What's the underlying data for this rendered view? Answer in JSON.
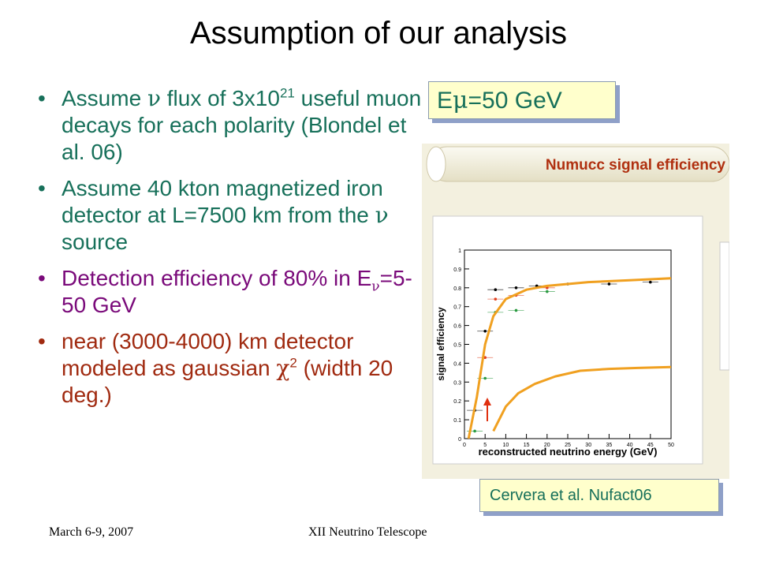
{
  "slide": {
    "title": "Assumption of our analysis",
    "bullets": [
      {
        "pre": "Assume ",
        "sym": "ν",
        "mid": " flux of 3x10",
        "sup": "21",
        "post": " useful muon decays for each polarity (Blondel et al. 06)"
      },
      {
        "pre": "Assume 40 kton magnetized iron detector at L=7500 km from the ",
        "sym": "ν",
        "post": " source"
      },
      {
        "pre": "Detection efficiency of 80% in E",
        "sub": "ν",
        "post": "=5-50 GeV"
      },
      {
        "pre": "near (3000-4000) km detector modeled as gaussian ",
        "sym": "χ",
        "sup": "2",
        "post": " (width 20 deg.)"
      }
    ],
    "energy_box": {
      "pre": "E",
      "sym": "μ",
      "post": "=50 GeV"
    },
    "citation": "Cervera et al. Nufact06",
    "footer_left": "March 6-9, 2007",
    "footer_center": "XII Neutrino Telescope"
  },
  "figure": {
    "banner": "Numucc signal efficiency",
    "ylabel": "signal efficiency",
    "xlabel": "reconstructed neutrino energy (GeV)",
    "x_ticks": [
      "0",
      "5",
      "10",
      "15",
      "20",
      "25",
      "30",
      "35",
      "40",
      "45",
      "50"
    ],
    "y_ticks": [
      "0",
      "0.1",
      "0.2",
      "0.3",
      "0.4",
      "0.5",
      "0.6",
      "0.7",
      "0.8",
      "0.9",
      "1"
    ]
  },
  "chart_data": {
    "type": "scatter",
    "xlabel": "reconstructed neutrino energy (GeV)",
    "ylabel": "signal efficiency",
    "xlim": [
      0,
      50
    ],
    "ylim": [
      0,
      1
    ],
    "series": [
      {
        "values": [
          [
            2.5,
            0.15
          ],
          [
            5,
            0.57
          ],
          [
            7.5,
            0.79
          ],
          [
            12.5,
            0.8
          ],
          [
            17.5,
            0.81
          ],
          [
            25,
            0.82
          ],
          [
            35,
            0.82
          ],
          [
            45,
            0.83
          ]
        ],
        "color": "#000000"
      },
      {
        "values": [
          [
            5,
            0.43
          ],
          [
            7.5,
            0.74
          ],
          [
            12.5,
            0.76
          ],
          [
            20,
            0.8
          ]
        ],
        "color": "#e04020"
      },
      {
        "values": [
          [
            2.5,
            0.04
          ],
          [
            5,
            0.32
          ],
          [
            7.5,
            0.67
          ],
          [
            12.5,
            0.68
          ],
          [
            20,
            0.78
          ]
        ],
        "color": "#2a9a40"
      }
    ],
    "curves": [
      {
        "values": [
          [
            1,
            0
          ],
          [
            3,
            0.22
          ],
          [
            5,
            0.5
          ],
          [
            7,
            0.65
          ],
          [
            10,
            0.74
          ],
          [
            15,
            0.79
          ],
          [
            20,
            0.81
          ],
          [
            30,
            0.83
          ],
          [
            40,
            0.84
          ],
          [
            50,
            0.85
          ]
        ],
        "color": "#f0a020"
      },
      {
        "values": [
          [
            7,
            0.04
          ],
          [
            10,
            0.17
          ],
          [
            13,
            0.24
          ],
          [
            17,
            0.29
          ],
          [
            22,
            0.33
          ],
          [
            28,
            0.36
          ],
          [
            35,
            0.37
          ],
          [
            42,
            0.375
          ],
          [
            50,
            0.38
          ]
        ],
        "color": "#f0a020"
      }
    ]
  },
  "colors": {
    "green": "#17705a",
    "purple": "#7a0a7a",
    "brown": "#a02a10",
    "box_fill": "#ffffcc",
    "curve": "#f0a020"
  }
}
